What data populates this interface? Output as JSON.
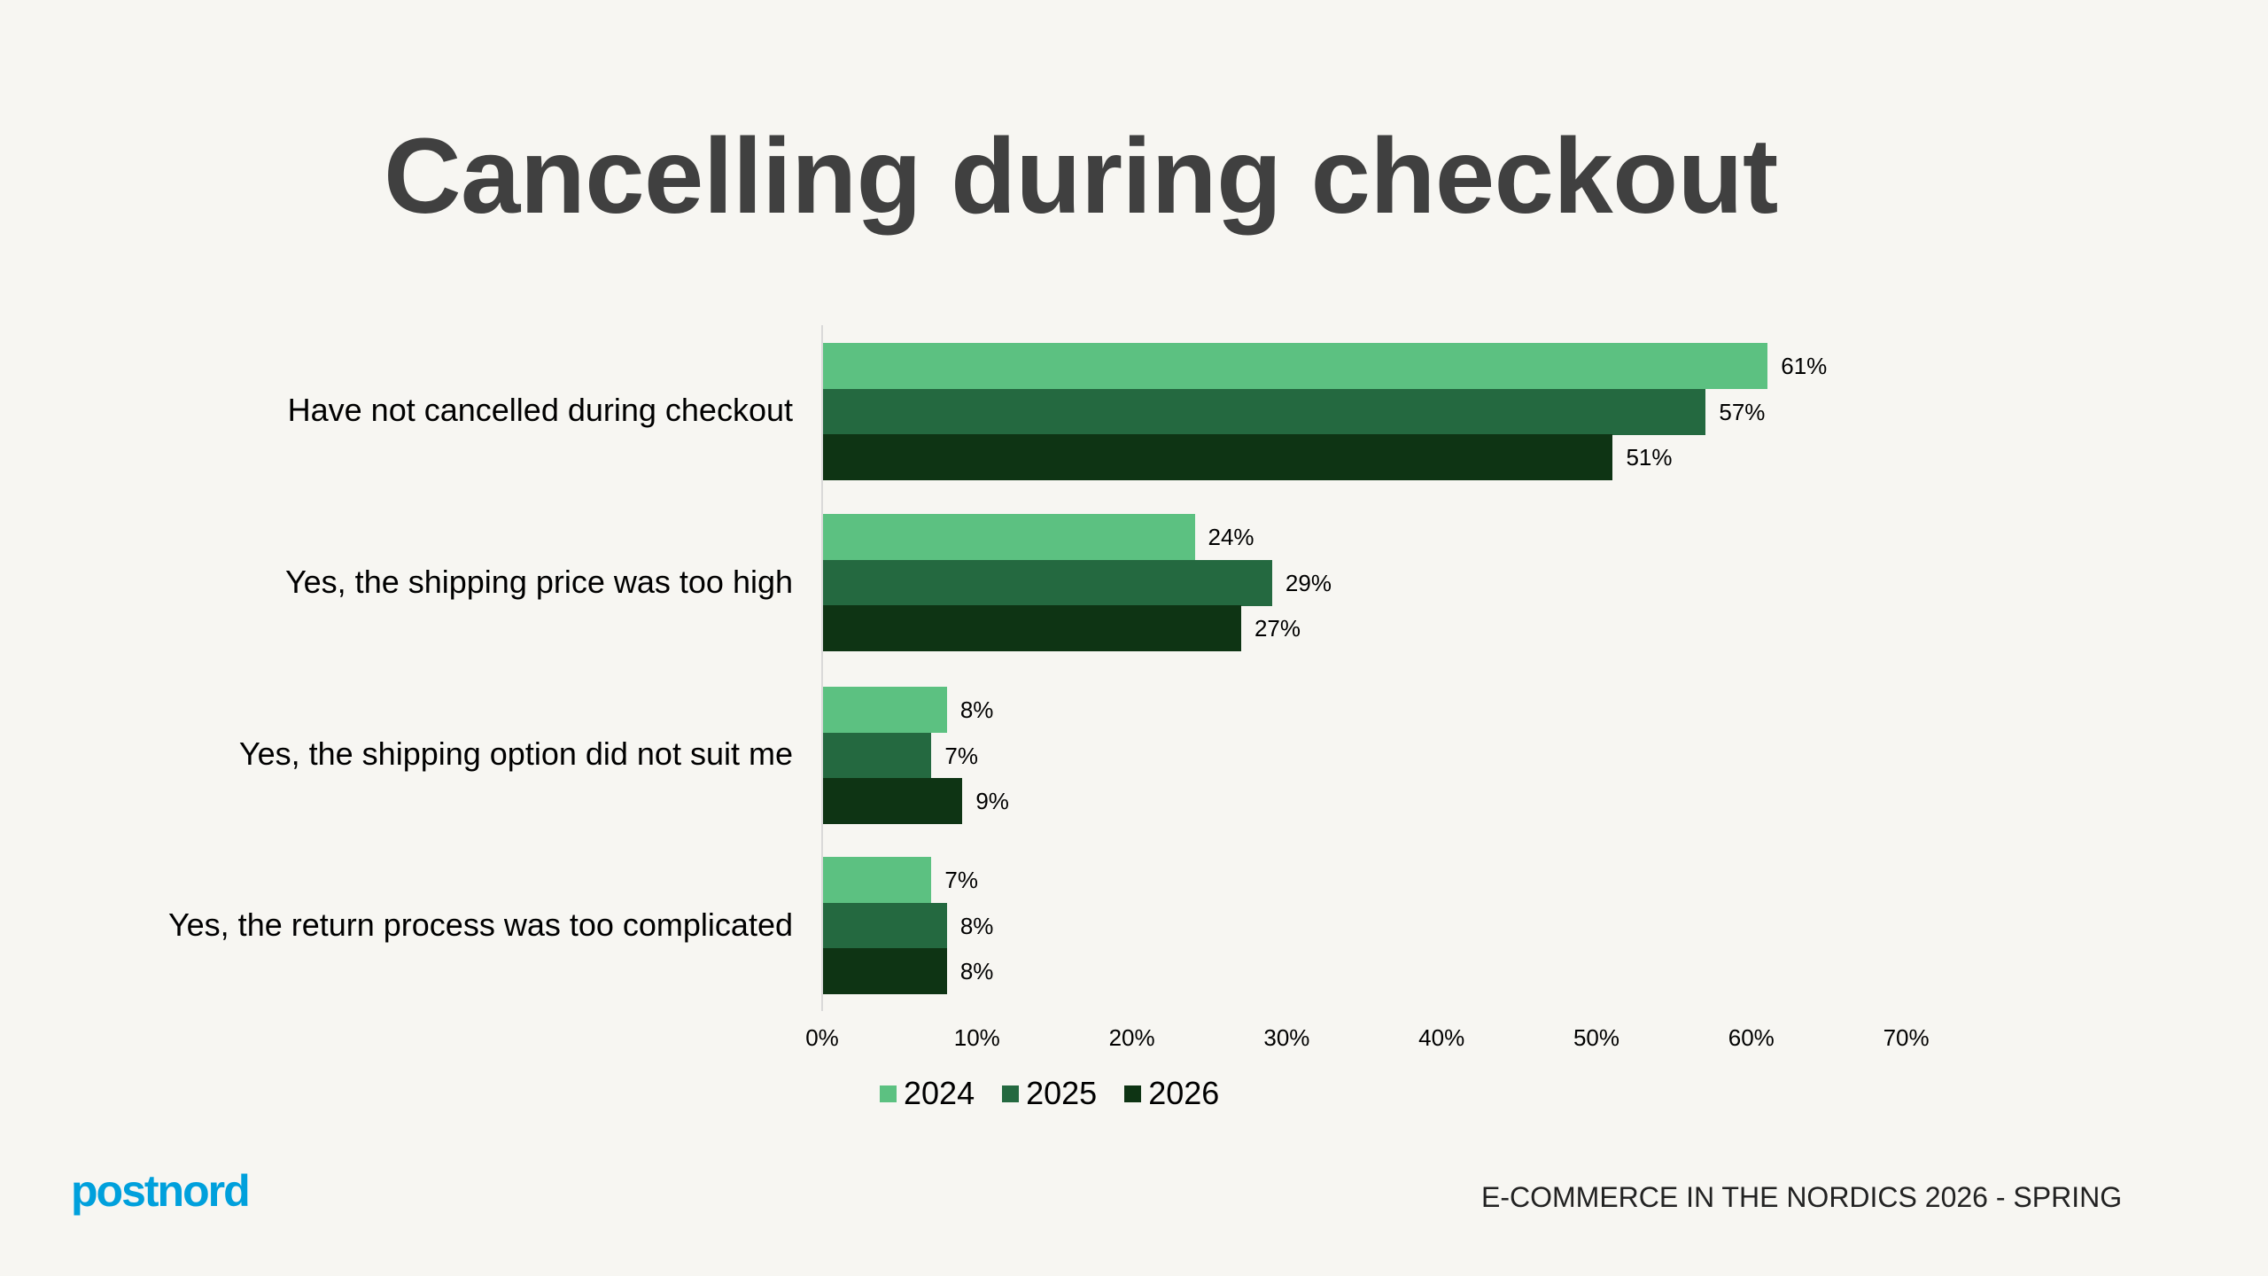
{
  "title": "Cancelling during checkout",
  "colors": {
    "background": "#F7F6F2",
    "series_2024": "#5CC181",
    "series_2025": "#246940",
    "series_2026": "#0E3414",
    "logo": "#00A0DC"
  },
  "chart_data": {
    "type": "bar",
    "orientation": "horizontal",
    "title": "Cancelling during checkout",
    "categories": [
      "Have not cancelled during checkout",
      "Yes, the shipping price was too high",
      "Yes, the shipping option did not suit me",
      "Yes, the return process was too complicated"
    ],
    "series": [
      {
        "name": "2024",
        "color": "#5CC181",
        "values": [
          61,
          24,
          8,
          7
        ],
        "labels": [
          "61%",
          "24%",
          "8%",
          "7%"
        ]
      },
      {
        "name": "2025",
        "color": "#246940",
        "values": [
          57,
          29,
          7,
          8
        ],
        "labels": [
          "57%",
          "29%",
          "7%",
          "8%"
        ]
      },
      {
        "name": "2026",
        "color": "#0E3414",
        "values": [
          51,
          27,
          9,
          8
        ],
        "labels": [
          "51%",
          "27%",
          "9%",
          "8%"
        ]
      }
    ],
    "xlabel": "",
    "ylabel": "",
    "xlim": [
      0,
      70
    ],
    "x_ticks": [
      "0%",
      "10%",
      "20%",
      "30%",
      "40%",
      "50%",
      "60%",
      "70%"
    ],
    "grid": false,
    "legend_position": "bottom",
    "units": "%"
  },
  "legend": [
    {
      "label": "2024",
      "color": "#5CC181"
    },
    {
      "label": "2025",
      "color": "#246940"
    },
    {
      "label": "2026",
      "color": "#0E3414"
    }
  ],
  "footer": {
    "logo_text": "postnord",
    "report_label": "E-COMMERCE IN THE NORDICS 2026 - SPRING"
  }
}
